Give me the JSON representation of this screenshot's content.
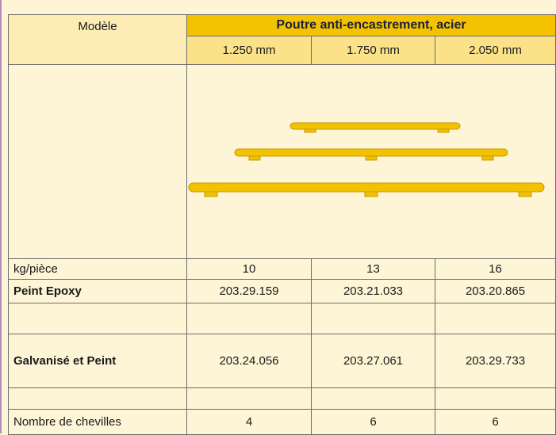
{
  "header": {
    "model": "Modèle",
    "group_title": "Poutre anti-encastrement, acier",
    "sizes": [
      "1.250 mm",
      "1.750 mm",
      "2.050 mm"
    ]
  },
  "rows": [
    {
      "label": "kg/pièce",
      "values": [
        "10",
        "13",
        "16"
      ]
    },
    {
      "label": "Peint Epoxy",
      "values": [
        "203.29.159",
        "203.21.033",
        "203.20.865"
      ]
    },
    {
      "label": "Galvanisé et Peint",
      "values": [
        "203.24.056",
        "203.27.061",
        "203.29.733"
      ]
    },
    {
      "label": "Nombre de chevilles",
      "values": [
        "4",
        "6",
        "6"
      ]
    }
  ]
}
